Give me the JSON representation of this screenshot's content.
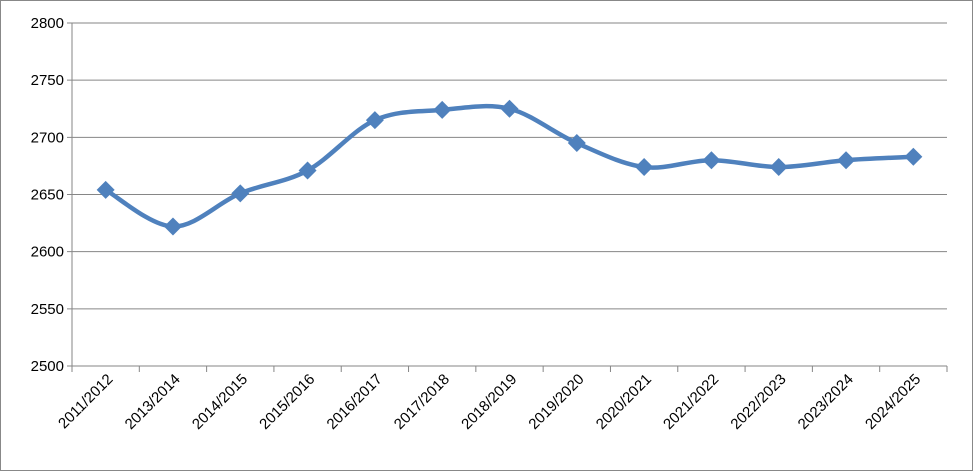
{
  "chart_data": {
    "type": "line",
    "categories": [
      "2011/2012",
      "2013/2014",
      "2014/2015",
      "2015/2016",
      "2016/2017",
      "2017/2018",
      "2018/2019",
      "2019/2020",
      "2020/2021",
      "2021/2022",
      "2022/2023",
      "2023/2024",
      "2024/2025"
    ],
    "series": [
      {
        "color": "#4f81bd",
        "values": [
          2654,
          2622,
          2651,
          2671,
          2715,
          2724,
          2725,
          2695,
          2674,
          2680,
          2674,
          2680,
          2683
        ]
      }
    ],
    "ylim": [
      2500,
      2800
    ],
    "yticks": [
      2500,
      2550,
      2600,
      2650,
      2700,
      2750,
      2800
    ],
    "grid": true,
    "smooth": true
  }
}
